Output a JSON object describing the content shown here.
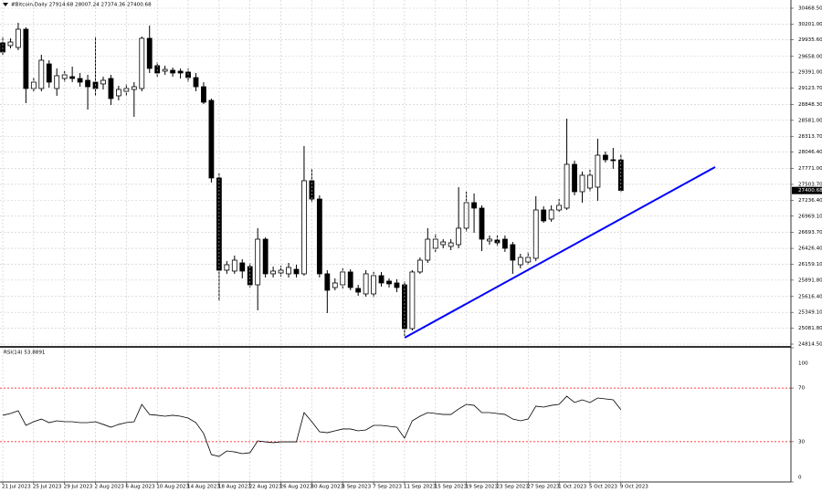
{
  "chart_data": [
    {
      "type": "candlestick",
      "title": "#Bitcoin,Daily 27914.68 28007.24 27374.36 27400.68",
      "up_color": "#ffffff",
      "down_color": "#000000",
      "grid": true,
      "ylim": [
        24783.8,
        30606.8
      ],
      "yticks": [
        {
          "value": 30468.5,
          "label": "30468.50"
        },
        {
          "value": 30201,
          "label": "30201.00"
        },
        {
          "value": 29935.6,
          "label": "29935.60"
        },
        {
          "value": 29658,
          "label": "29658.00"
        },
        {
          "value": 29391,
          "label": "29391.00"
        },
        {
          "value": 29123.7,
          "label": "29123.70"
        },
        {
          "value": 28848.3,
          "label": "28848.30"
        },
        {
          "value": 28581,
          "label": "28581.00"
        },
        {
          "value": 28313.7,
          "label": "28313.70"
        },
        {
          "value": 28046.4,
          "label": "28046.40"
        },
        {
          "value": 27771,
          "label": "27771.00"
        },
        {
          "value": 27503.7,
          "label": "27503.70"
        },
        {
          "value": 27236.4,
          "label": "27236.40"
        },
        {
          "value": 26969.1,
          "label": "26969.10"
        },
        {
          "value": 26693.7,
          "label": "26693.70"
        },
        {
          "value": 26426.4,
          "label": "26426.40"
        },
        {
          "value": 26159.1,
          "label": "26159.10"
        },
        {
          "value": 25891.8,
          "label": "25891.80"
        },
        {
          "value": 25616.4,
          "label": "25616.40"
        },
        {
          "value": 25349.1,
          "label": "25349.10"
        },
        {
          "value": 25081.8,
          "label": "25081.80"
        },
        {
          "value": 24814.5,
          "label": "24814.50"
        }
      ],
      "current_price": {
        "value": 27400.68,
        "label": "27400.68"
      },
      "open": [
        29885,
        29839,
        29808,
        30115,
        29117,
        29117,
        29531,
        29117,
        29286,
        29316,
        29286,
        29255,
        29224,
        29194,
        29286,
        28994,
        29070,
        29101,
        29117,
        29962,
        29501,
        29409,
        29424,
        29409,
        29393,
        29301,
        29147,
        28917,
        27611,
        26059,
        26044,
        26182,
        26120,
        25813,
        26581,
        25998,
        26013,
        25998,
        26074,
        25998,
        27565,
        27257,
        25998,
        25767,
        25813,
        26029,
        25752,
        25660,
        25660,
        25967,
        25875,
        25844,
        25813,
        25076,
        26029,
        26228,
        26428,
        26489,
        26459,
        26489,
        26766,
        27196,
        27104,
        26551,
        26566,
        26581,
        26489,
        26151,
        26197,
        26259,
        27073,
        26919,
        27073,
        27104,
        27841,
        27380,
        27442,
        27457,
        27995,
        27918,
        27914.68
      ],
      "high": [
        29992,
        29962,
        30223,
        30146,
        29301,
        29685,
        29593,
        29455,
        29409,
        29485,
        29378,
        29347,
        29992,
        29316,
        29347,
        29163,
        29194,
        29224,
        29992,
        30177,
        29562,
        29501,
        29470,
        29455,
        29455,
        29378,
        29224,
        28948,
        27688,
        26213,
        26305,
        26243,
        26182,
        26766,
        26612,
        26120,
        26136,
        26182,
        26151,
        28149,
        27765,
        27319,
        26059,
        25921,
        26090,
        26074,
        25813,
        26059,
        26029,
        26029,
        25921,
        25906,
        25875,
        26059,
        26274,
        26766,
        26674,
        26581,
        26581,
        27457,
        27380,
        27350,
        27150,
        26643,
        26643,
        26643,
        26535,
        26335,
        26366,
        27304,
        27134,
        27150,
        27257,
        28609,
        27903,
        27719,
        27749,
        28272,
        28056,
        28118,
        28007.24
      ],
      "low": [
        29685,
        29793,
        29762,
        28871,
        29070,
        29070,
        29132,
        28994,
        29224,
        29224,
        29147,
        28763,
        28994,
        29101,
        28840,
        28917,
        28994,
        28640,
        29070,
        29378,
        29316,
        29347,
        29316,
        29286,
        29224,
        29070,
        28856,
        27534,
        25537,
        25998,
        25998,
        25921,
        25767,
        25383,
        25936,
        25936,
        25951,
        25936,
        25936,
        25967,
        27196,
        25936,
        25337,
        25721,
        25752,
        25721,
        25629,
        25613,
        25598,
        25782,
        25767,
        25690,
        24953,
        25045,
        25998,
        26182,
        26366,
        26428,
        26397,
        26428,
        26704,
        26689,
        26382,
        26489,
        26459,
        26366,
        25998,
        26090,
        26151,
        26213,
        26858,
        26873,
        27042,
        27073,
        27319,
        27196,
        27380,
        27227,
        27872,
        27765,
        27374.36
      ],
      "close": [
        29731,
        29900,
        30115,
        29117,
        29224,
        29593,
        29224,
        29332,
        29347,
        29286,
        29224,
        29147,
        29117,
        29255,
        28948,
        29101,
        29117,
        29147,
        29962,
        29455,
        29378,
        29439,
        29378,
        29378,
        29301,
        29147,
        28886,
        27611,
        26059,
        26151,
        26228,
        26044,
        25813,
        26581,
        25998,
        26044,
        26059,
        26105,
        25998,
        27565,
        27257,
        25998,
        25721,
        25844,
        26029,
        25767,
        25690,
        25998,
        25967,
        25844,
        25829,
        25767,
        25076,
        26029,
        26228,
        26581,
        26581,
        26535,
        26520,
        26766,
        27196,
        27104,
        26581,
        26581,
        26520,
        26428,
        26228,
        26274,
        26274,
        27073,
        26889,
        27073,
        27150,
        27841,
        27380,
        27657,
        27657,
        27995,
        27918,
        27903,
        27400.68
      ]
    },
    {
      "type": "line",
      "title": "RSI(14) 53.8891",
      "color": "#000000",
      "grid": true,
      "ylim": [
        0,
        100
      ],
      "yticks": [
        0,
        30,
        70,
        100
      ],
      "levels": [
        30,
        70
      ],
      "level_color": "#ff0000",
      "categories": [
        "21 Jul 2023",
        null,
        null,
        null,
        "25 Jul 2023",
        null,
        null,
        null,
        "29 Jul 2023",
        null,
        null,
        null,
        "2 Aug 2023",
        null,
        null,
        null,
        "6 Aug 2023",
        null,
        null,
        null,
        "10 Aug 2023",
        null,
        null,
        null,
        "14 Aug 2023",
        null,
        null,
        null,
        "18 Aug 2023",
        null,
        null,
        null,
        "22 Aug 2023",
        null,
        null,
        null,
        "26 Aug 2023",
        null,
        null,
        null,
        "30 Aug 2023",
        null,
        null,
        null,
        "3 Sep 2023",
        null,
        null,
        null,
        "7 Sep 2023",
        null,
        null,
        null,
        "11 Sep 2023",
        null,
        null,
        null,
        "15 Sep 2023",
        null,
        null,
        null,
        "19 Sep 2023",
        null,
        null,
        null,
        "23 Sep 2023",
        null,
        null,
        null,
        "27 Sep 2023",
        null,
        null,
        null,
        "1 Oct 2023",
        null,
        null,
        null,
        "5 Oct 2023",
        null,
        null,
        null,
        "9 Oct 2023"
      ],
      "values": [
        49.7,
        51.0,
        53.1,
        42.2,
        44.9,
        46.9,
        44.2,
        45.6,
        44.9,
        44.9,
        44.2,
        44.2,
        44.9,
        42.9,
        40.8,
        42.9,
        44.2,
        44.9,
        57.8,
        50.3,
        49.7,
        49.0,
        49.7,
        49.0,
        47.6,
        44.2,
        36.1,
        20.4,
        19.0,
        23.1,
        22.4,
        21.1,
        21.8,
        30.6,
        29.9,
        29.3,
        29.9,
        29.9,
        29.9,
        51.7,
        44.9,
        37.4,
        36.7,
        38.1,
        39.5,
        39.5,
        38.1,
        38.8,
        42.2,
        42.2,
        41.5,
        40.8,
        32.7,
        45.6,
        49.0,
        51.7,
        51.0,
        50.3,
        50.3,
        54.4,
        57.8,
        57.1,
        51.7,
        51.7,
        51.0,
        50.3,
        46.9,
        45.6,
        46.9,
        56.5,
        55.8,
        57.1,
        57.8,
        63.9,
        59.2,
        61.2,
        59.2,
        62.6,
        61.9,
        61.2,
        53.8891
      ]
    }
  ]
}
